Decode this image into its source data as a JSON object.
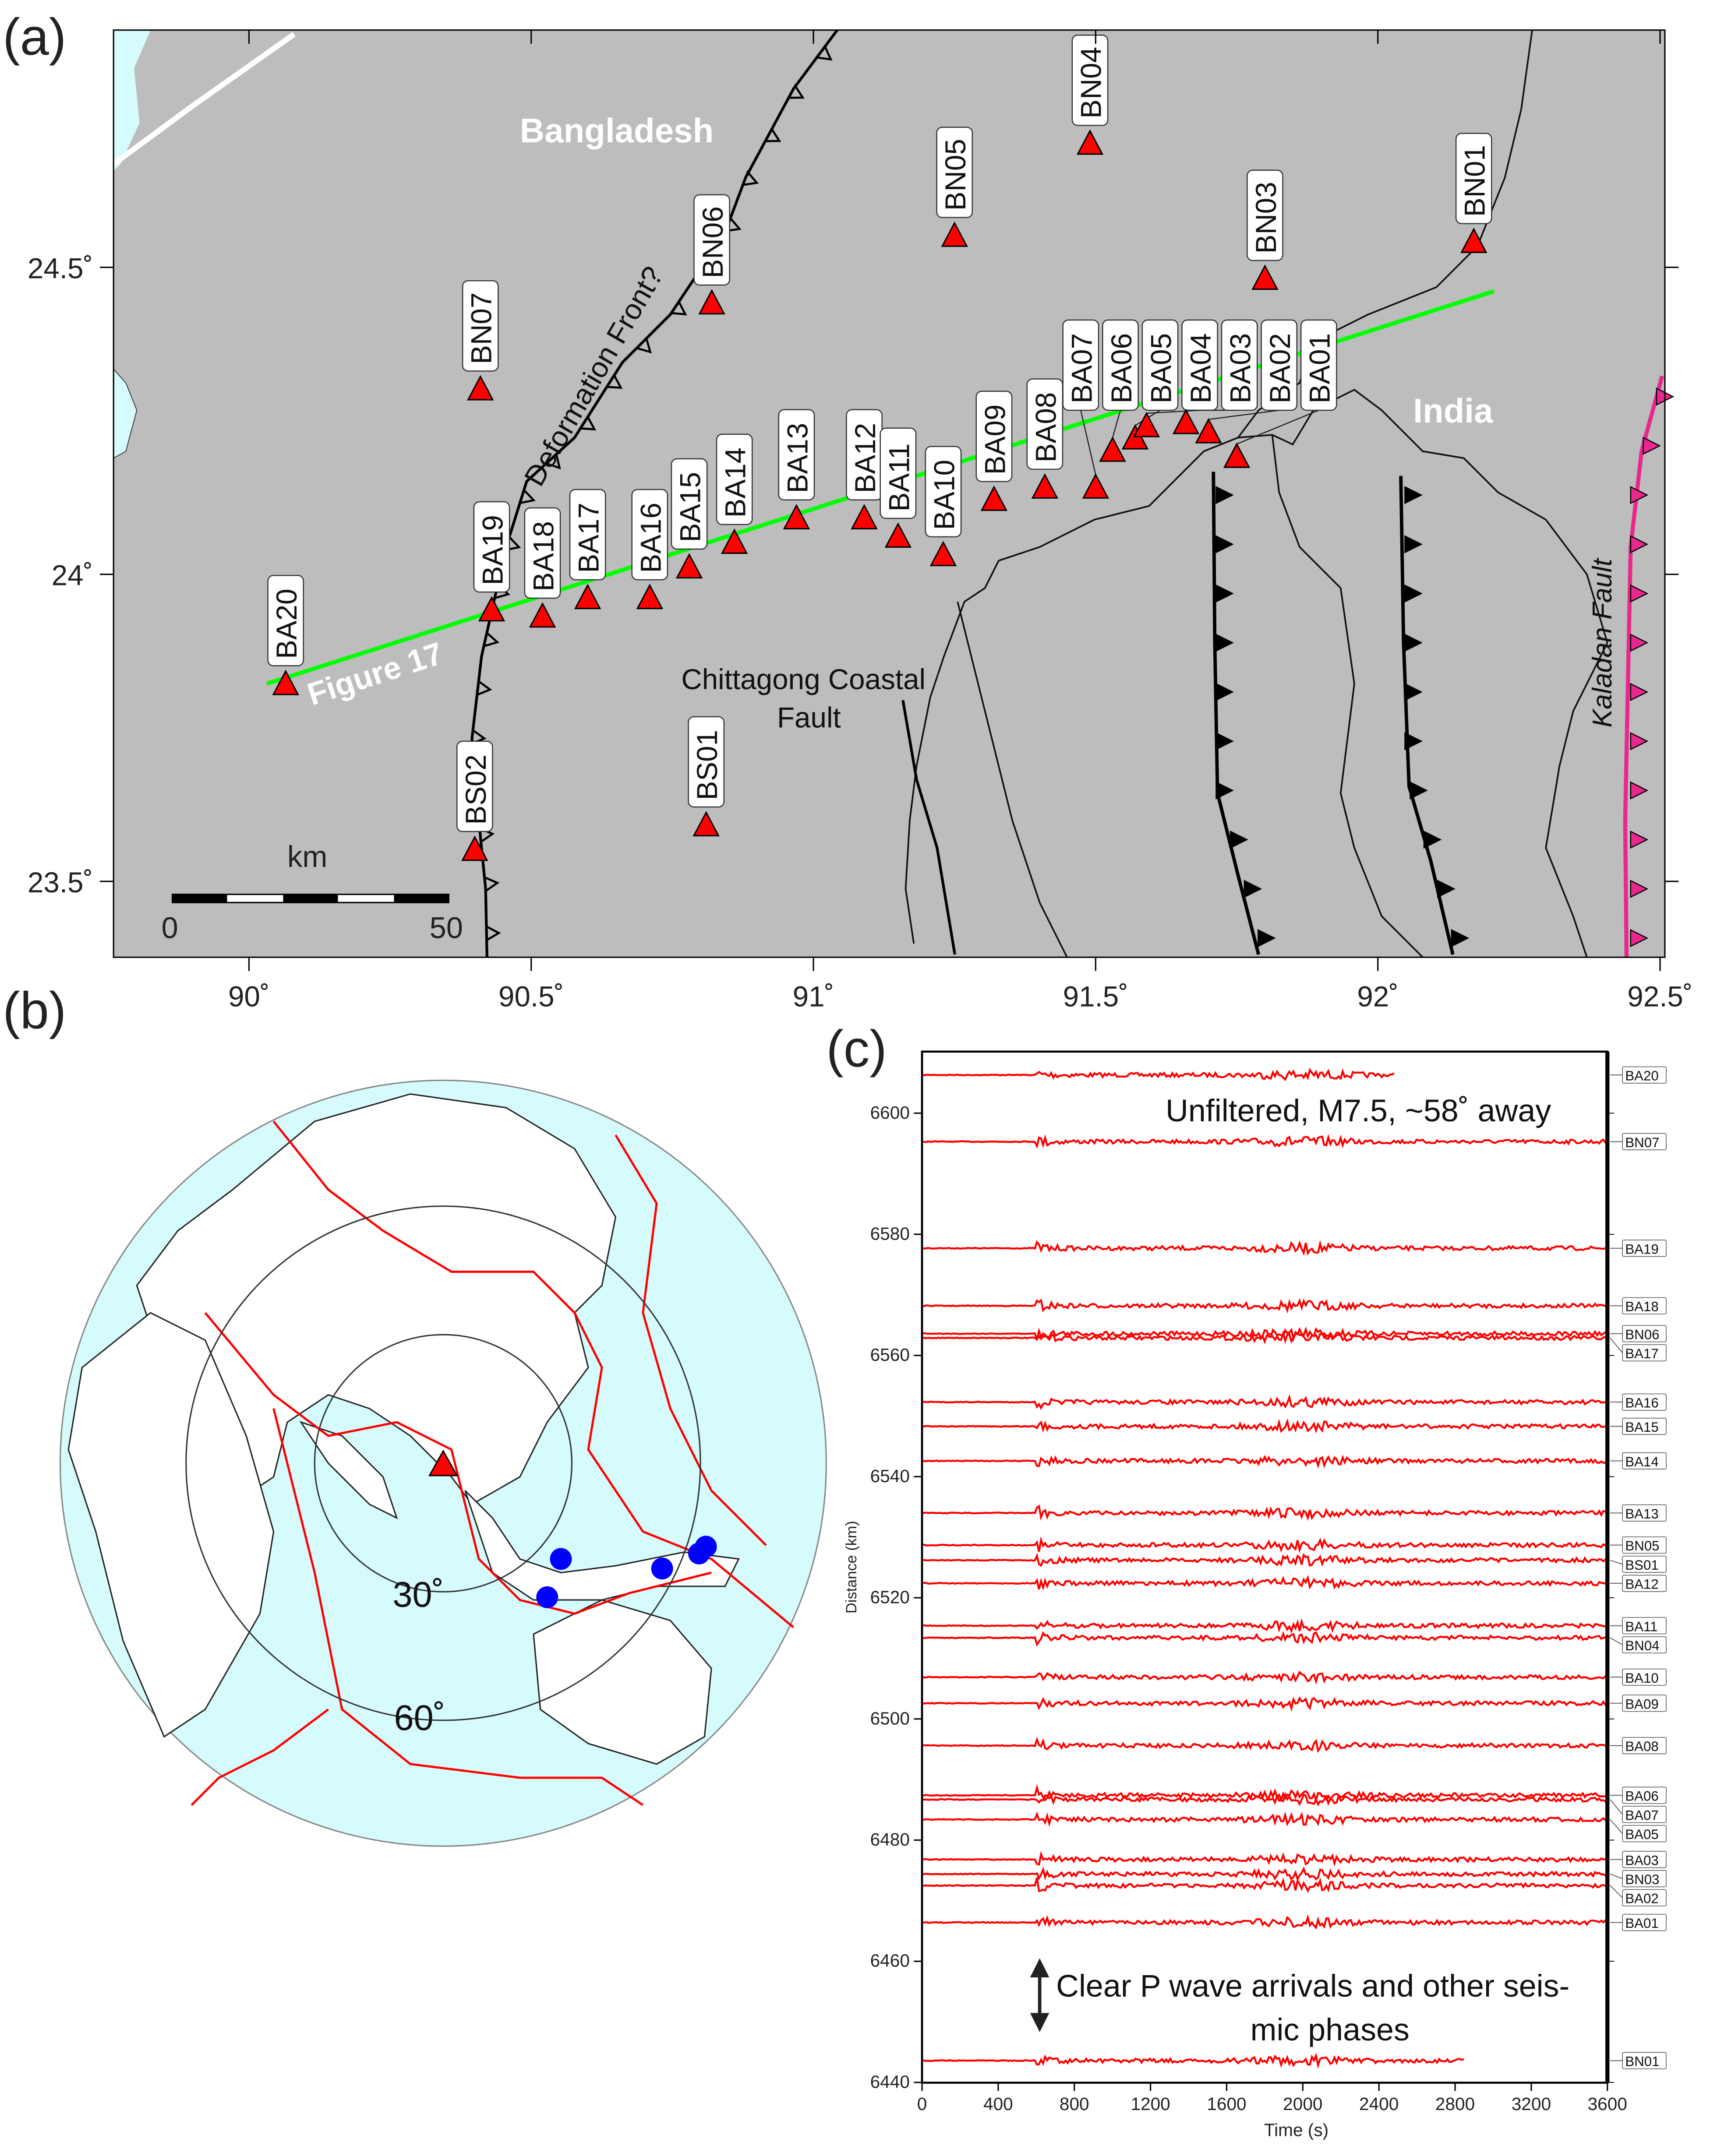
{
  "panels": {
    "a": "(a)",
    "b": "(b)",
    "c": "(c)"
  },
  "map_a": {
    "lon_ticks": [
      "90˚",
      "90.5˚",
      "91˚",
      "91.5˚",
      "92˚",
      "92.5˚"
    ],
    "lon_values": [
      90,
      90.5,
      91,
      91.5,
      92,
      92.5
    ],
    "lat_ticks": [
      "24.5˚",
      "24˚",
      "23.5˚"
    ],
    "lat_values": [
      24.5,
      24,
      23.5
    ],
    "lon_range": [
      89.76,
      92.5
    ],
    "lat_range": [
      23.375,
      24.885
    ],
    "labels": {
      "bangladesh": "Bangladesh",
      "india": "India",
      "deformation_front": "Deformation Front?",
      "chittagong_1": "Chittagong Coastal",
      "chittagong_2": "Fault",
      "kaladan": "Kaladan Fault",
      "figure17": "Figure 17"
    },
    "scalebar": {
      "unit": "km",
      "start": "0",
      "end": "50"
    },
    "stations": [
      {
        "name": "BA20",
        "lon": 90.065,
        "lat": 23.82
      },
      {
        "name": "BN07",
        "lon": 90.41,
        "lat": 24.3
      },
      {
        "name": "BA19",
        "lon": 90.43,
        "lat": 23.94
      },
      {
        "name": "BA18",
        "lon": 90.52,
        "lat": 23.93
      },
      {
        "name": "BA17",
        "lon": 90.6,
        "lat": 23.96
      },
      {
        "name": "BA16",
        "lon": 90.71,
        "lat": 23.96
      },
      {
        "name": "BA15",
        "lon": 90.78,
        "lat": 24.01
      },
      {
        "name": "BA14",
        "lon": 90.86,
        "lat": 24.05
      },
      {
        "name": "BA13",
        "lon": 90.97,
        "lat": 24.09
      },
      {
        "name": "BA12",
        "lon": 91.09,
        "lat": 24.09
      },
      {
        "name": "BA11",
        "lon": 91.15,
        "lat": 24.06
      },
      {
        "name": "BA10",
        "lon": 91.23,
        "lat": 24.03
      },
      {
        "name": "BA09",
        "lon": 91.32,
        "lat": 24.12
      },
      {
        "name": "BA08",
        "lon": 91.41,
        "lat": 24.14
      },
      {
        "name": "BA07",
        "lon": 91.5,
        "lat": 24.14
      },
      {
        "name": "BA06",
        "lon": 91.53,
        "lat": 24.2
      },
      {
        "name": "BA05",
        "lon": 91.57,
        "lat": 24.22
      },
      {
        "name": "BA04",
        "lon": 91.59,
        "lat": 24.24
      },
      {
        "name": "BA03",
        "lon": 91.66,
        "lat": 24.245
      },
      {
        "name": "BA02",
        "lon": 91.7,
        "lat": 24.23
      },
      {
        "name": "BA01",
        "lon": 91.75,
        "lat": 24.19
      },
      {
        "name": "BN06",
        "lon": 90.82,
        "lat": 24.44
      },
      {
        "name": "BN05",
        "lon": 91.25,
        "lat": 24.55
      },
      {
        "name": "BN04",
        "lon": 91.49,
        "lat": 24.7
      },
      {
        "name": "BN03",
        "lon": 91.8,
        "lat": 24.48
      },
      {
        "name": "BN01",
        "lon": 92.17,
        "lat": 24.54
      },
      {
        "name": "BS01",
        "lon": 90.81,
        "lat": 23.59
      },
      {
        "name": "BS02",
        "lon": 90.4,
        "lat": 23.55
      }
    ],
    "colors": {
      "land": "#bdbdbd",
      "water": "#d6fbfd",
      "station": "#ff0000",
      "profile": "#00ff00",
      "kaladan": "#e8288c"
    }
  },
  "map_b": {
    "ring_labels": [
      "30˚",
      "60˚"
    ],
    "colors": {
      "ocean": "#d6fbfd",
      "plate_boundary": "#ff0000",
      "event": "#0000ff"
    }
  },
  "chart_data": {
    "type": "line",
    "title": "Unfiltered, M7.5, ~58˚ away",
    "xlabel": "Time (s)",
    "ylabel": "Distance (km)",
    "xlim": [
      0,
      3600
    ],
    "ylim": [
      6440,
      6610
    ],
    "x_ticks": [
      "0",
      "400",
      "800",
      "1200",
      "1600",
      "2000",
      "2400",
      "2800",
      "3200",
      "3600"
    ],
    "y_ticks": [
      "6600",
      "6580",
      "6560",
      "6540",
      "6520",
      "6500",
      "6480",
      "6460",
      "6440"
    ],
    "p_arrival_s": 600,
    "annotation_1": "Clear P wave arrivals and other seis-",
    "annotation_2": "mic phases",
    "traces": [
      {
        "station": "BA20",
        "distance_km": 6606.3,
        "end_s": 2480
      },
      {
        "station": "BN07",
        "distance_km": 6595.3,
        "end_s": 3600
      },
      {
        "station": "BA19",
        "distance_km": 6577.7,
        "end_s": 3600
      },
      {
        "station": "BA18",
        "distance_km": 6568.2,
        "end_s": 3600
      },
      {
        "station": "BA17",
        "distance_km": 6562.9,
        "end_s": 3600
      },
      {
        "station": "BN06",
        "distance_km": 6563.6,
        "end_s": 3600
      },
      {
        "station": "BA16",
        "distance_km": 6552.3,
        "end_s": 3600
      },
      {
        "station": "BA15",
        "distance_km": 6548.3,
        "end_s": 3600
      },
      {
        "station": "BA14",
        "distance_km": 6542.6,
        "end_s": 3600
      },
      {
        "station": "BA13",
        "distance_km": 6534.0,
        "end_s": 3600
      },
      {
        "station": "BN05",
        "distance_km": 6528.7,
        "end_s": 3600
      },
      {
        "station": "BS01",
        "distance_km": 6526.2,
        "end_s": 3600
      },
      {
        "station": "BA12",
        "distance_km": 6522.4,
        "end_s": 3600
      },
      {
        "station": "BA11",
        "distance_km": 6515.4,
        "end_s": 3600
      },
      {
        "station": "BN04",
        "distance_km": 6513.4,
        "end_s": 3600
      },
      {
        "station": "BA10",
        "distance_km": 6506.9,
        "end_s": 3600
      },
      {
        "station": "BA09",
        "distance_km": 6502.6,
        "end_s": 3600
      },
      {
        "station": "BA08",
        "distance_km": 6495.6,
        "end_s": 3600
      },
      {
        "station": "BA06",
        "distance_km": 6487.4,
        "end_s": 3600
      },
      {
        "station": "BA07",
        "distance_km": 6486.7,
        "end_s": 3600
      },
      {
        "station": "BA05",
        "distance_km": 6483.4,
        "end_s": 3600
      },
      {
        "station": "BA03",
        "distance_km": 6476.8,
        "end_s": 3600
      },
      {
        "station": "BN03",
        "distance_km": 6474.4,
        "end_s": 3600
      },
      {
        "station": "BA02",
        "distance_km": 6472.5,
        "end_s": 3600
      },
      {
        "station": "BA01",
        "distance_km": 6466.4,
        "end_s": 3600
      },
      {
        "station": "BN01",
        "distance_km": 6443.6,
        "end_s": 2850
      }
    ]
  }
}
